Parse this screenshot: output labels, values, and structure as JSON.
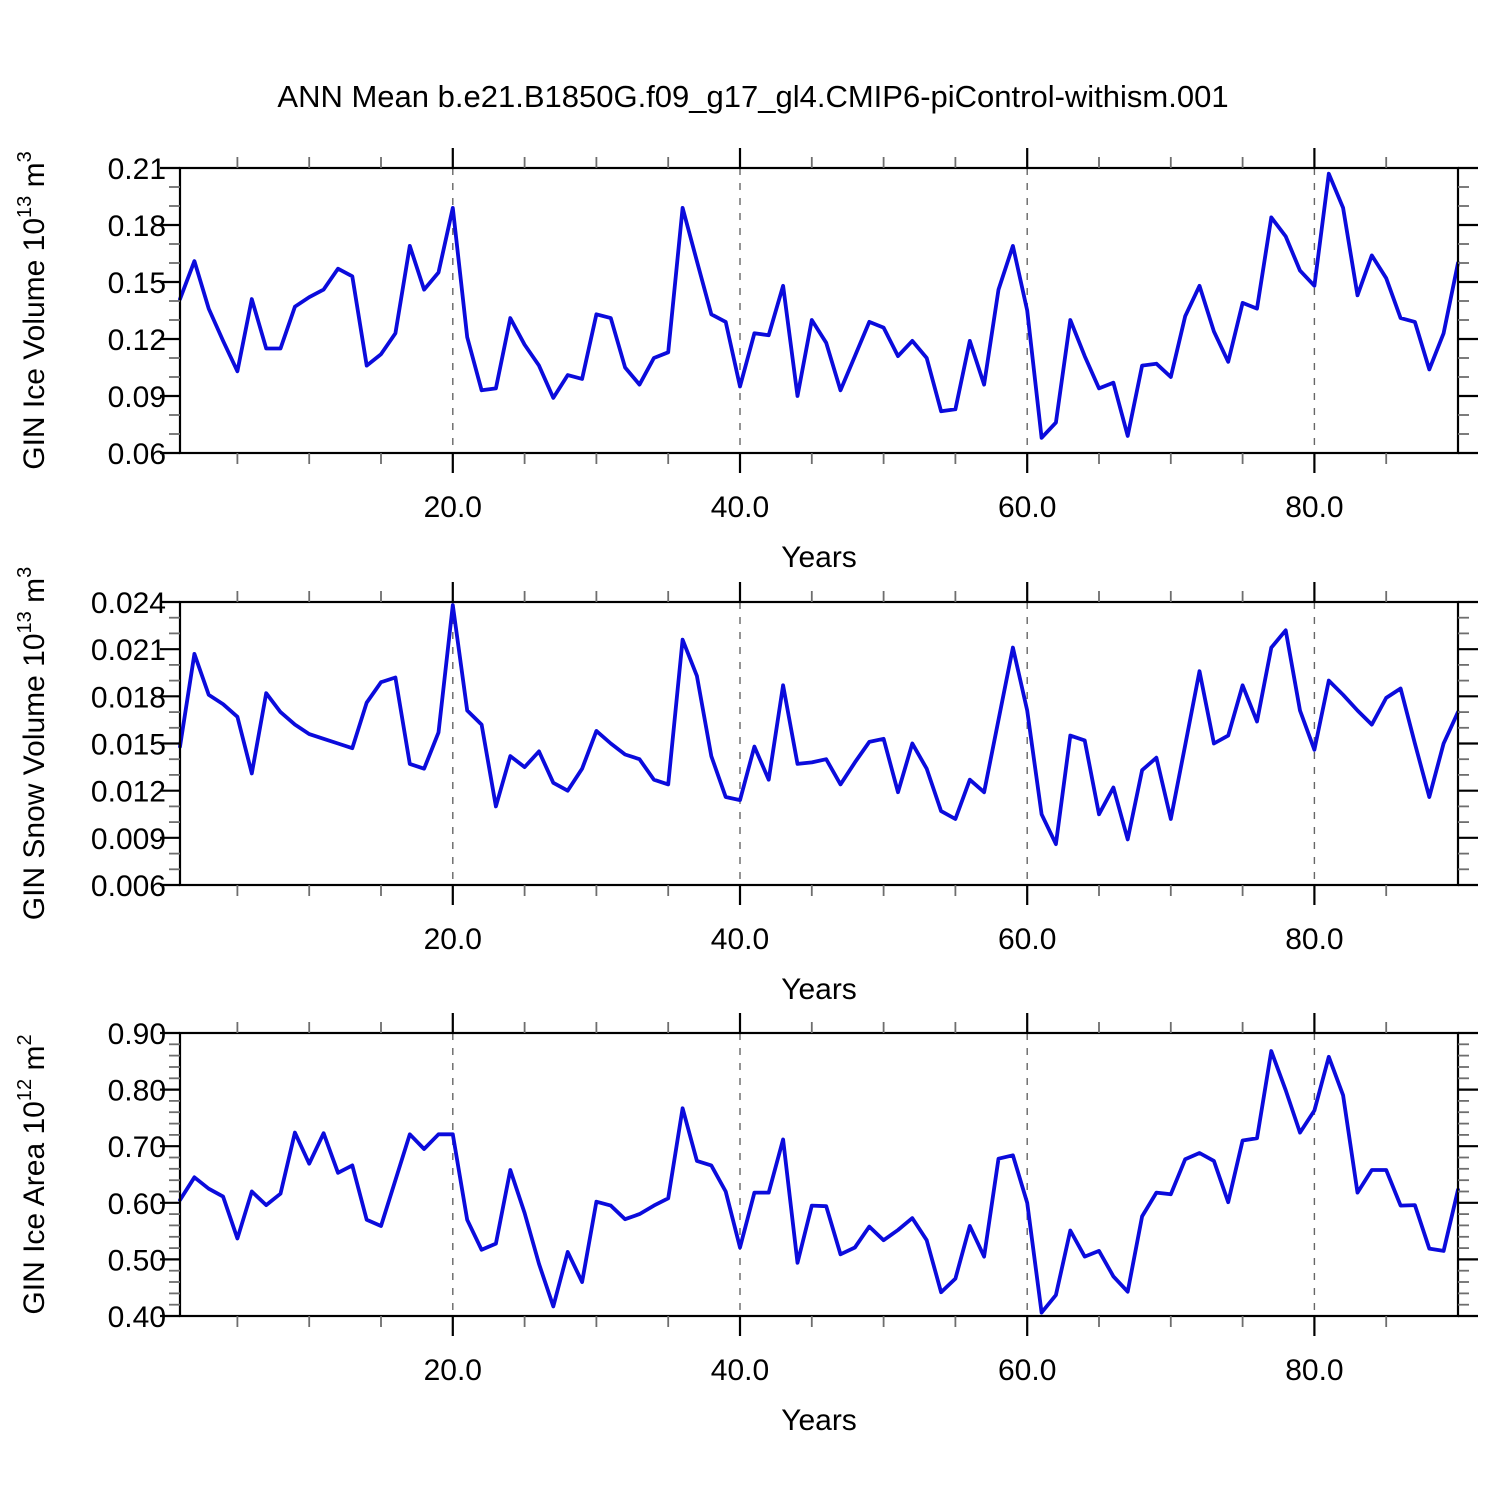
{
  "title": "ANN Mean b.e21.B1850G.f09_g17_gl4.CMIP6-piControl-withism.001",
  "colors": {
    "line": "#0b0bdc",
    "grid": "#666666",
    "minor_tick": "#6e6e6e",
    "major_tick": "#000000",
    "frame": "#000000"
  },
  "chart_data": [
    {
      "type": "line",
      "name": "gin-ice-volume",
      "ylabel_parts": [
        {
          "t": "GIN Ice Volume 10",
          "sup": false
        },
        {
          "t": "13",
          "sup": true
        },
        {
          "t": " m",
          "sup": false
        },
        {
          "t": "3",
          "sup": true
        }
      ],
      "xlabel": "Years",
      "xlim": [
        1,
        90
      ],
      "ylim": [
        0.06,
        0.21
      ],
      "xtick_values": [
        20,
        40,
        60,
        80
      ],
      "xtick_labels": [
        "20.0",
        "40.0",
        "60.0",
        "80.0"
      ],
      "xminor_step": 5,
      "ytick_values": [
        0.21,
        0.18,
        0.15,
        0.12,
        0.09,
        0.06
      ],
      "ytick_labels": [
        "0.21",
        "0.18",
        "0.15",
        "0.12",
        "0.09",
        "0.06"
      ],
      "yminor_step": 0.01,
      "grid_on": true,
      "years": {
        "start": 1,
        "end": 90,
        "step": 1
      },
      "values": [
        0.141,
        0.161,
        0.136,
        0.119,
        0.103,
        0.141,
        0.115,
        0.115,
        0.137,
        0.142,
        0.146,
        0.157,
        0.153,
        0.106,
        0.112,
        0.123,
        0.169,
        0.146,
        0.155,
        0.189,
        0.121,
        0.093,
        0.094,
        0.131,
        0.117,
        0.106,
        0.089,
        0.101,
        0.099,
        0.133,
        0.131,
        0.105,
        0.096,
        0.11,
        0.113,
        0.189,
        0.161,
        0.133,
        0.129,
        0.095,
        0.123,
        0.122,
        0.148,
        0.09,
        0.13,
        0.118,
        0.093,
        0.111,
        0.129,
        0.126,
        0.111,
        0.119,
        0.11,
        0.082,
        0.083,
        0.119,
        0.096,
        0.146,
        0.169,
        0.135,
        0.068,
        0.076,
        0.13,
        0.111,
        0.094,
        0.097,
        0.069,
        0.106,
        0.107,
        0.1,
        0.132,
        0.148,
        0.124,
        0.108,
        0.139,
        0.136,
        0.184,
        0.174,
        0.156,
        0.148,
        0.207,
        0.189,
        0.143,
        0.164,
        0.152,
        0.131,
        0.129,
        0.104,
        0.123,
        0.16
      ]
    },
    {
      "type": "line",
      "name": "gin-snow-volume",
      "ylabel_parts": [
        {
          "t": "GIN Snow Volume 10",
          "sup": false
        },
        {
          "t": "13",
          "sup": true
        },
        {
          "t": " m",
          "sup": false
        },
        {
          "t": "3",
          "sup": true
        }
      ],
      "xlabel": "Years",
      "xlim": [
        1,
        90
      ],
      "ylim": [
        0.006,
        0.024
      ],
      "xtick_values": [
        20,
        40,
        60,
        80
      ],
      "xtick_labels": [
        "20.0",
        "40.0",
        "60.0",
        "80.0"
      ],
      "xminor_step": 5,
      "ytick_values": [
        0.024,
        0.021,
        0.018,
        0.015,
        0.012,
        0.009,
        0.006
      ],
      "ytick_labels": [
        "0.024",
        "0.021",
        "0.018",
        "0.015",
        "0.012",
        "0.009",
        "0.006"
      ],
      "yminor_step": 0.001,
      "grid_on": true,
      "years": {
        "start": 1,
        "end": 90,
        "step": 1
      },
      "values": [
        0.0148,
        0.0207,
        0.0181,
        0.0175,
        0.0167,
        0.0131,
        0.0182,
        0.017,
        0.0162,
        0.0156,
        0.0153,
        0.015,
        0.0147,
        0.0176,
        0.0189,
        0.0192,
        0.0137,
        0.0134,
        0.0157,
        0.0238,
        0.0171,
        0.0162,
        0.011,
        0.0142,
        0.0135,
        0.0145,
        0.0125,
        0.012,
        0.0134,
        0.0158,
        0.015,
        0.0143,
        0.014,
        0.0127,
        0.0124,
        0.0216,
        0.0193,
        0.0142,
        0.0116,
        0.0114,
        0.0148,
        0.0127,
        0.0187,
        0.0137,
        0.0138,
        0.014,
        0.0124,
        0.0138,
        0.0151,
        0.0153,
        0.0119,
        0.015,
        0.0134,
        0.0107,
        0.0102,
        0.0127,
        0.0119,
        0.0165,
        0.0211,
        0.0171,
        0.0105,
        0.0086,
        0.0155,
        0.0152,
        0.0105,
        0.0122,
        0.0089,
        0.0133,
        0.0141,
        0.0102,
        0.0149,
        0.0196,
        0.015,
        0.0155,
        0.0187,
        0.0164,
        0.0211,
        0.0222,
        0.0171,
        0.0146,
        0.019,
        0.0181,
        0.0171,
        0.0162,
        0.0179,
        0.0185,
        0.015,
        0.0116,
        0.015,
        0.017
      ]
    },
    {
      "type": "line",
      "name": "gin-ice-area",
      "ylabel_parts": [
        {
          "t": "GIN Ice Area 10",
          "sup": false
        },
        {
          "t": "12",
          "sup": true
        },
        {
          "t": " m",
          "sup": false
        },
        {
          "t": "2",
          "sup": true
        }
      ],
      "xlabel": "Years",
      "xlim": [
        1,
        90
      ],
      "ylim": [
        0.4,
        0.9
      ],
      "xtick_values": [
        20,
        40,
        60,
        80
      ],
      "xtick_labels": [
        "20.0",
        "40.0",
        "60.0",
        "80.0"
      ],
      "xminor_step": 5,
      "ytick_values": [
        0.9,
        0.8,
        0.7,
        0.6,
        0.5,
        0.4
      ],
      "ytick_labels": [
        "0.90",
        "0.80",
        "0.70",
        "0.60",
        "0.50",
        "0.40"
      ],
      "yminor_step": 0.02,
      "grid_on": true,
      "years": {
        "start": 1,
        "end": 90,
        "step": 1
      },
      "values": [
        0.605,
        0.645,
        0.625,
        0.611,
        0.537,
        0.62,
        0.596,
        0.616,
        0.724,
        0.669,
        0.723,
        0.653,
        0.666,
        0.57,
        0.559,
        0.64,
        0.721,
        0.695,
        0.721,
        0.721,
        0.57,
        0.517,
        0.528,
        0.658,
        0.582,
        0.492,
        0.417,
        0.513,
        0.46,
        0.602,
        0.595,
        0.571,
        0.58,
        0.595,
        0.608,
        0.767,
        0.674,
        0.666,
        0.62,
        0.521,
        0.618,
        0.618,
        0.712,
        0.494,
        0.595,
        0.594,
        0.509,
        0.521,
        0.558,
        0.534,
        0.552,
        0.573,
        0.534,
        0.442,
        0.466,
        0.559,
        0.505,
        0.678,
        0.684,
        0.6,
        0.406,
        0.437,
        0.551,
        0.505,
        0.515,
        0.47,
        0.443,
        0.576,
        0.618,
        0.615,
        0.677,
        0.688,
        0.674,
        0.601,
        0.71,
        0.714,
        0.868,
        0.799,
        0.724,
        0.763,
        0.858,
        0.79,
        0.618,
        0.658,
        0.658,
        0.595,
        0.596,
        0.519,
        0.515,
        0.623
      ]
    }
  ]
}
